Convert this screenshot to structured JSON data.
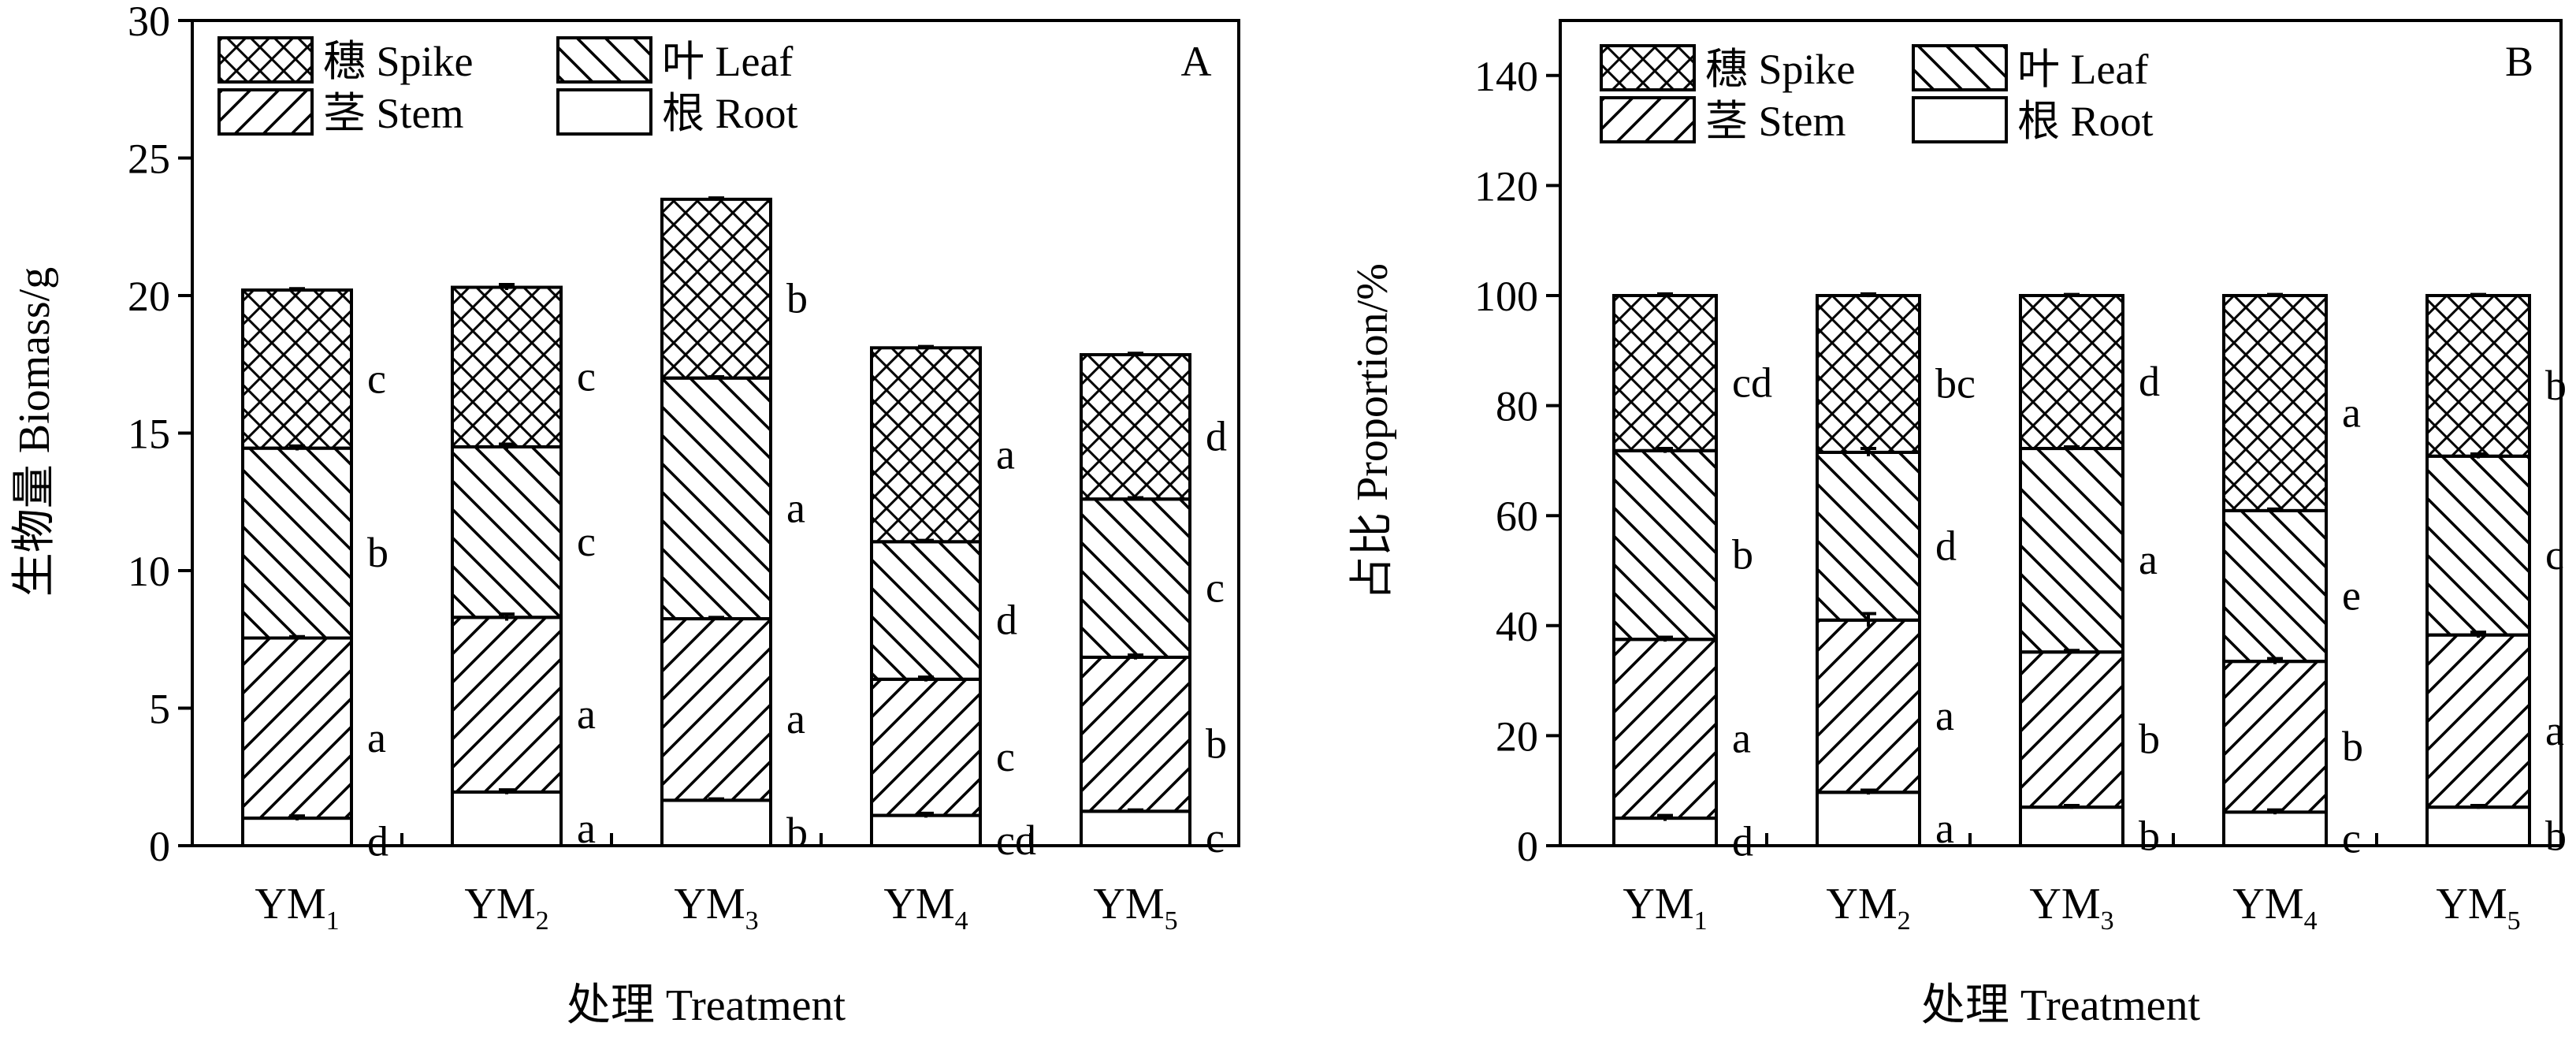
{
  "chart_data": [
    {
      "type": "bar",
      "stacked": true,
      "panel_label": "A",
      "xlabel": "处理 Treatment",
      "ylabel": "生物量 Biomass/g",
      "ylim": [
        0,
        30
      ],
      "yticks": [
        0,
        5,
        10,
        15,
        20,
        25,
        30
      ],
      "categories": [
        {
          "base": "YM",
          "sub": "1"
        },
        {
          "base": "YM",
          "sub": "2"
        },
        {
          "base": "YM",
          "sub": "3"
        },
        {
          "base": "YM",
          "sub": "4"
        },
        {
          "base": "YM",
          "sub": "5"
        }
      ],
      "legend": {
        "placement": "top-left",
        "entries": [
          {
            "series": "spike",
            "label": "穗 Spike"
          },
          {
            "series": "leaf",
            "label": "叶 Leaf"
          },
          {
            "series": "stem",
            "label": "茎 Stem"
          },
          {
            "series": "root",
            "label": "根 Root"
          }
        ]
      },
      "series": [
        {
          "key": "root",
          "pattern": "none",
          "values": [
            1.0,
            1.95,
            1.65,
            1.1,
            1.25
          ],
          "errors": [
            0.08,
            0.08,
            0.05,
            0.08,
            0.05
          ],
          "labels": [
            "d",
            "a",
            "b",
            "cd",
            "c"
          ]
        },
        {
          "key": "stem",
          "pattern": "hatch-forward",
          "values": [
            6.55,
            6.35,
            6.6,
            4.95,
            5.6
          ],
          "errors": [
            0.05,
            0.12,
            0.05,
            0.08,
            0.08
          ],
          "labels": [
            "a",
            "a",
            "a",
            "c",
            "b"
          ]
        },
        {
          "key": "leaf",
          "pattern": "hatch-back",
          "values": [
            6.9,
            6.2,
            8.75,
            5.0,
            5.75
          ],
          "errors": [
            0.08,
            0.1,
            0.05,
            0.05,
            0.05
          ],
          "labels": [
            "b",
            "c",
            "a",
            "d",
            "c"
          ]
        },
        {
          "key": "spike",
          "pattern": "crosshatch",
          "values": [
            5.75,
            5.8,
            6.5,
            7.05,
            5.25
          ],
          "errors": [
            0.05,
            0.1,
            0.05,
            0.05,
            0.05
          ],
          "labels": [
            "c",
            "c",
            "b",
            "a",
            "d"
          ]
        }
      ]
    },
    {
      "type": "bar",
      "stacked": true,
      "panel_label": "B",
      "xlabel": "处理 Treatment",
      "ylabel": "占比 Proportion/%",
      "ylim": [
        0,
        150
      ],
      "yticks": [
        0,
        20,
        40,
        60,
        80,
        100,
        120,
        140
      ],
      "categories": [
        {
          "base": "YM",
          "sub": "1"
        },
        {
          "base": "YM",
          "sub": "2"
        },
        {
          "base": "YM",
          "sub": "3"
        },
        {
          "base": "YM",
          "sub": "4"
        },
        {
          "base": "YM",
          "sub": "5"
        }
      ],
      "legend": {
        "placement": "top-left",
        "entries": [
          {
            "series": "spike",
            "label": "穗 Spike"
          },
          {
            "series": "leaf",
            "label": "叶 Leaf"
          },
          {
            "series": "stem",
            "label": "茎 Stem"
          },
          {
            "series": "root",
            "label": "根 Root"
          }
        ]
      },
      "series": [
        {
          "key": "root",
          "pattern": "none",
          "values": [
            5.0,
            9.7,
            7.0,
            6.1,
            7.0
          ],
          "errors": [
            0.5,
            0.4,
            0.3,
            0.4,
            0.3
          ],
          "labels": [
            "d",
            "a",
            "b",
            "c",
            "b"
          ]
        },
        {
          "key": "stem",
          "pattern": "hatch-forward",
          "values": [
            32.5,
            31.3,
            28.2,
            27.4,
            31.3
          ],
          "errors": [
            0.4,
            1.2,
            0.3,
            0.5,
            0.5
          ],
          "labels": [
            "a",
            "a",
            "b",
            "b",
            "a"
          ]
        },
        {
          "key": "leaf",
          "pattern": "hatch-back",
          "values": [
            34.3,
            30.5,
            37.0,
            27.4,
            32.5
          ],
          "errors": [
            0.4,
            0.7,
            0.3,
            0.3,
            0.4
          ],
          "labels": [
            "b",
            "d",
            "a",
            "e",
            "c"
          ]
        },
        {
          "key": "spike",
          "pattern": "crosshatch",
          "values": [
            28.2,
            28.5,
            27.8,
            39.1,
            29.2
          ],
          "errors": [
            0.3,
            0.3,
            0.2,
            0.2,
            0.2
          ],
          "labels": [
            "cd",
            "bc",
            "d",
            "a",
            "b"
          ]
        }
      ]
    }
  ]
}
